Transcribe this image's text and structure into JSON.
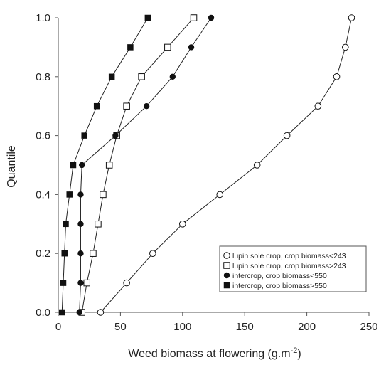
{
  "chart_data": {
    "type": "line",
    "title": "",
    "xlabel": "Weed biomass at flowering (g.m",
    "xlabel_sup": "-2",
    "xlabel_suffix": ")",
    "ylabel": "Quantile",
    "xlim": [
      0,
      250
    ],
    "ylim": [
      0,
      1.0
    ],
    "x_ticks": [
      0,
      50,
      100,
      150,
      200,
      250
    ],
    "y_ticks": [
      "0.0",
      "0.2",
      "0.4",
      "0.6",
      "0.8",
      "1.0"
    ],
    "grid": false,
    "legend_position": "bottom-right",
    "quantiles": [
      0.0,
      0.1,
      0.2,
      0.3,
      0.4,
      0.5,
      0.6,
      0.7,
      0.8,
      0.9,
      1.0
    ],
    "series": [
      {
        "name": "lupin sole crop, crop biomass<243",
        "marker": "open-circle",
        "values": [
          34,
          55,
          76,
          100,
          130,
          160,
          184,
          209,
          224,
          231,
          236
        ]
      },
      {
        "name": "lupin sole crop, crop biomass>243",
        "marker": "open-square",
        "values": [
          19,
          23,
          28,
          32,
          36,
          41,
          47,
          55,
          67,
          88,
          109
        ]
      },
      {
        "name": "intercrop, crop biomass<550",
        "marker": "filled-circle",
        "values": [
          17,
          18,
          18,
          18,
          18,
          19,
          46,
          71,
          92,
          107,
          123
        ]
      },
      {
        "name": "intercrop, crop biomass>550",
        "marker": "filled-square",
        "values": [
          3,
          4,
          5,
          6,
          9,
          12,
          21,
          31,
          43,
          58,
          72
        ]
      }
    ]
  }
}
